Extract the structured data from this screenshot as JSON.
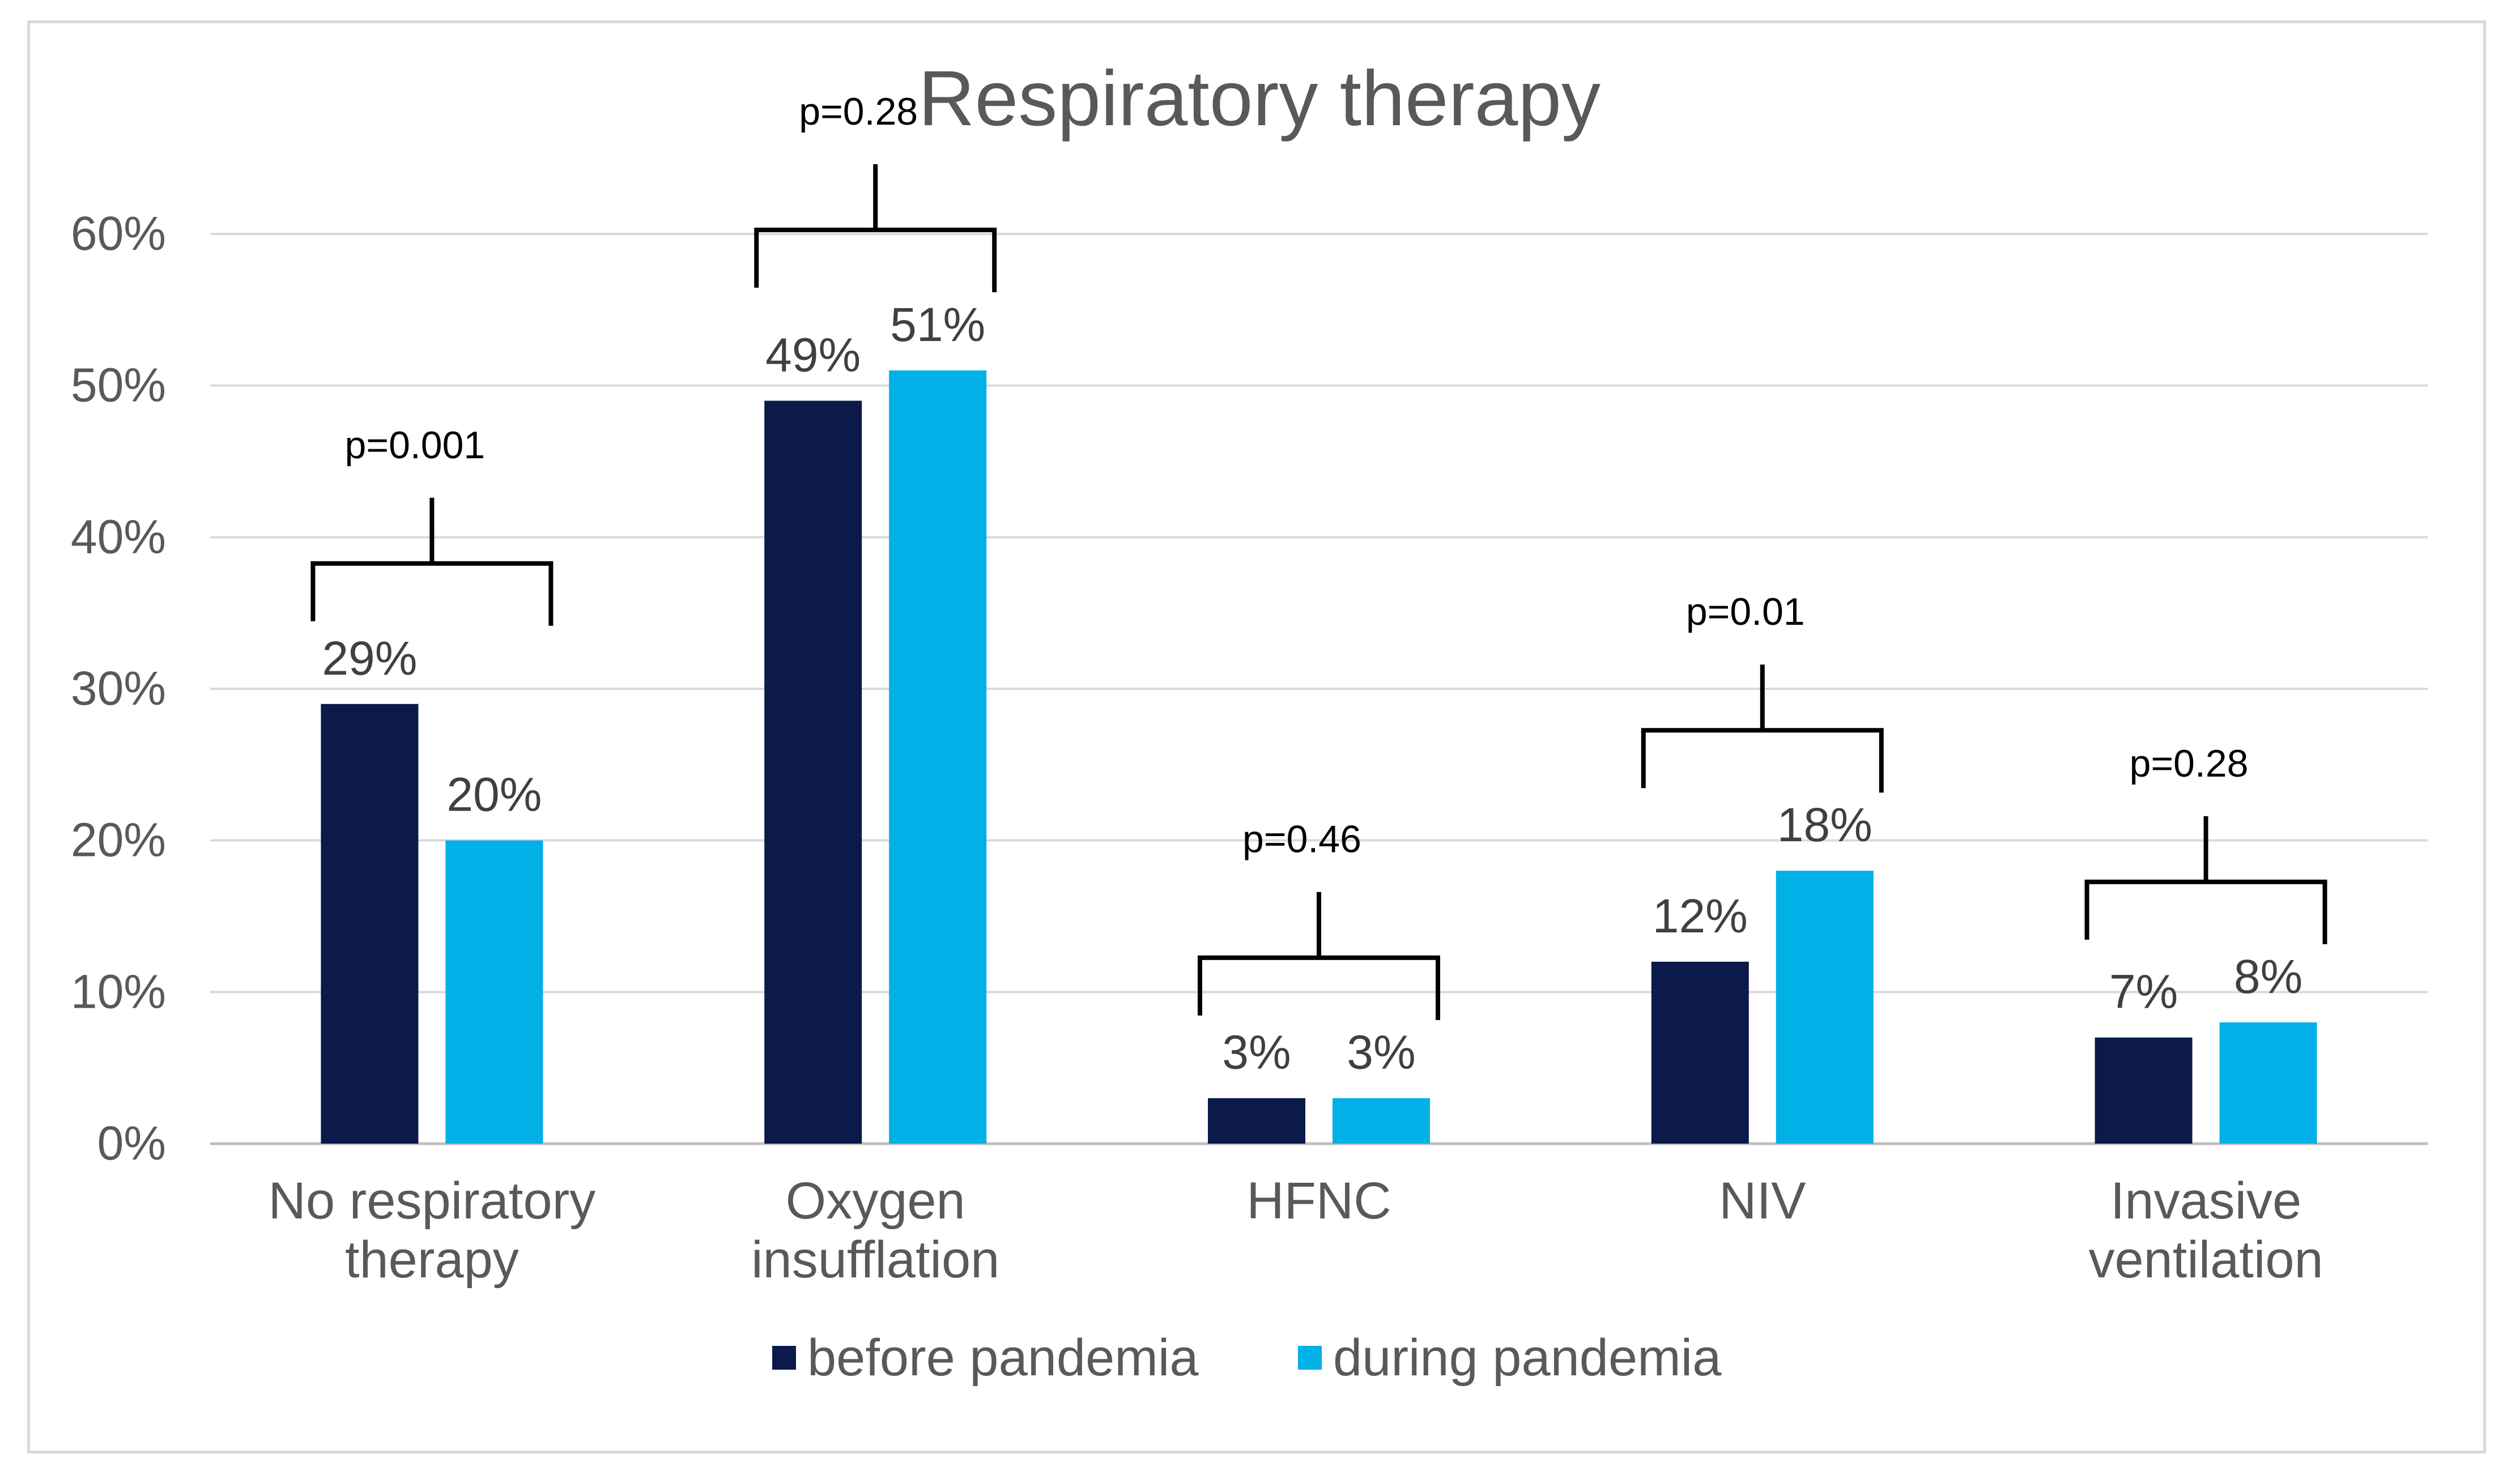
{
  "chart_data": {
    "type": "bar",
    "title": "Respiratory therapy",
    "categories": [
      [
        "No respiratory",
        "therapy"
      ],
      [
        "Oxygen",
        "insufflation"
      ],
      [
        "HFNC"
      ],
      [
        "NIV"
      ],
      [
        "Invasive",
        "ventilation"
      ]
    ],
    "series": [
      {
        "name": "before pandemia",
        "color": "#0b1a4a",
        "values": [
          29,
          49,
          3,
          12,
          7
        ]
      },
      {
        "name": "during pandemia",
        "color": "#00b0e6",
        "values": [
          20,
          51,
          3,
          18,
          8
        ]
      }
    ],
    "data_labels": [
      [
        "29%",
        "49%",
        "3%",
        "12%",
        "7%"
      ],
      [
        "20%",
        "51%",
        "3%",
        "18%",
        "8%"
      ]
    ],
    "p_values": [
      "p=0.001",
      "p=0.28",
      "p=0.46",
      "p=0.01",
      "p=0.28"
    ],
    "y_ticks": [
      0,
      10,
      20,
      30,
      40,
      50,
      60
    ],
    "y_tick_labels": [
      "0%",
      "10%",
      "20%",
      "30%",
      "40%",
      "50%",
      "60%"
    ],
    "ylim": [
      0,
      60
    ],
    "xlabel": "",
    "ylabel": "",
    "grid": true,
    "legend_position": "bottom-center"
  }
}
